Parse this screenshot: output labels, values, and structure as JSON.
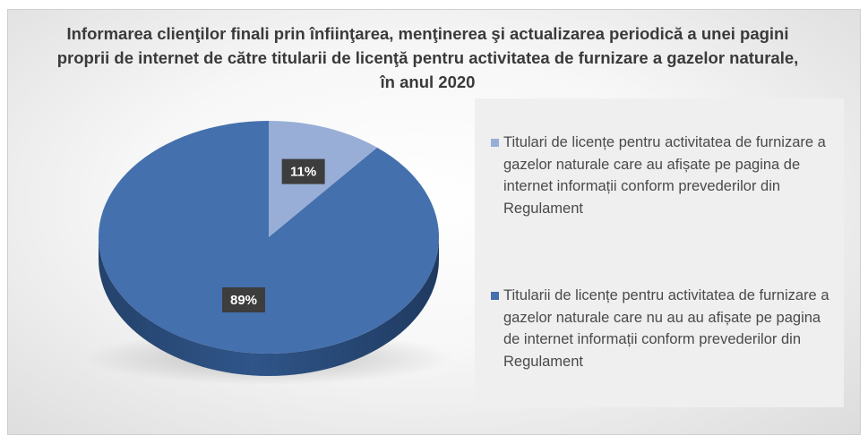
{
  "chart_data": {
    "type": "pie",
    "title": "Informarea clienţilor finali prin înfiinţarea, menţinerea şi actualizarea periodică a unei pagini proprii de internet de către titularii de licenţă pentru activitatea de furnizare a gazelor naturale, în anul 2020",
    "slices": [
      {
        "label": "Titulari de licențe pentru activitatea de furnizare a gazelor naturale care au afișate pe pagina de internet informații conform prevederilor din Regulament",
        "value": 11,
        "data_label": "11%",
        "color": "#98aed6"
      },
      {
        "label": "Titularii de licențe pentru activitatea de furnizare a gazelor naturale care nu au au afișate pe pagina de internet informații conform prevederilor din Regulament",
        "value": 89,
        "data_label": "89%",
        "color": "#4470ad"
      }
    ],
    "legend_position": "right"
  }
}
